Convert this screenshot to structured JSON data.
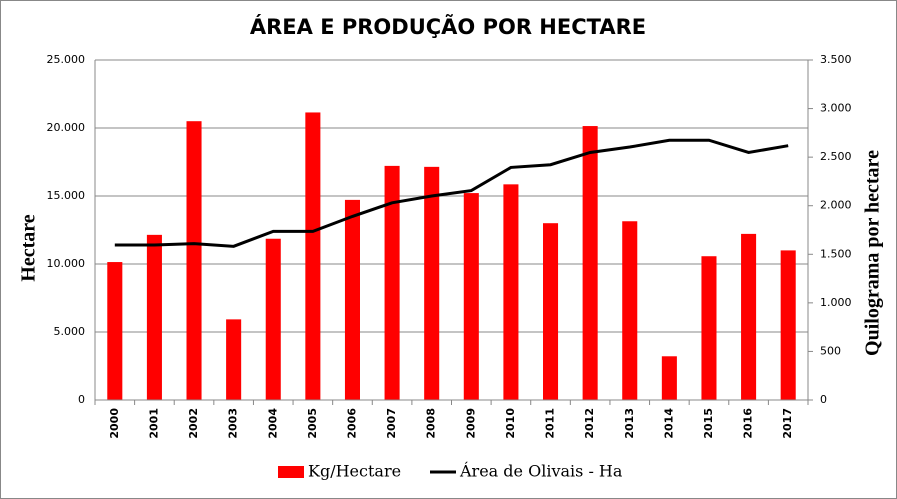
{
  "chart_data": {
    "type": "bar_line",
    "title": "ÁREA E PRODUÇÃO POR HECTARE",
    "y_label": "Hectare",
    "y2_label": "Quilograma por hectare",
    "categories": [
      "2000",
      "2001",
      "2002",
      "2003",
      "2004",
      "2005",
      "2006",
      "2007",
      "2008",
      "2009",
      "2010",
      "2011",
      "2012",
      "2013",
      "2014",
      "2015",
      "2016",
      "2017"
    ],
    "series": [
      {
        "name": "Kg/Hectare",
        "type": "bar",
        "axis": "y2",
        "color": "#ff0000",
        "values": [
          1420,
          1700,
          2870,
          830,
          1660,
          2960,
          2060,
          2410,
          2400,
          2130,
          2220,
          1820,
          2820,
          1840,
          450,
          1480,
          1710,
          1540
        ]
      },
      {
        "name": "Área de Olivais - Ha",
        "type": "line",
        "color": "#000000",
        "values": [
          11400,
          11400,
          11500,
          11300,
          12400,
          12400,
          13500,
          14500,
          15000,
          15400,
          17100,
          17300,
          18200,
          18600,
          19100,
          19100,
          18200,
          18700
        ]
      }
    ],
    "ylim": [
      0,
      25000
    ],
    "yticks": [
      0,
      {
        "value": 5000,
        "label": "5.000"
      },
      {
        "value": 10000,
        "label": "10.000"
      },
      {
        "value": 15000,
        "label": "15.000"
      },
      {
        "value": 20000,
        "label": "20.000"
      },
      {
        "value": 25000,
        "label": "25.000"
      }
    ],
    "y2lim": [
      0,
      3500
    ],
    "y2ticks": [
      0,
      500,
      {
        "value": 1000,
        "label": "1.000"
      },
      {
        "value": 1500,
        "label": "1.500"
      },
      {
        "value": 2000,
        "label": "2.000"
      },
      {
        "value": 2500,
        "label": "2.500"
      },
      {
        "value": 3000,
        "label": "3.000"
      },
      {
        "value": 3500,
        "label": "3.500"
      }
    ],
    "grid": true
  }
}
